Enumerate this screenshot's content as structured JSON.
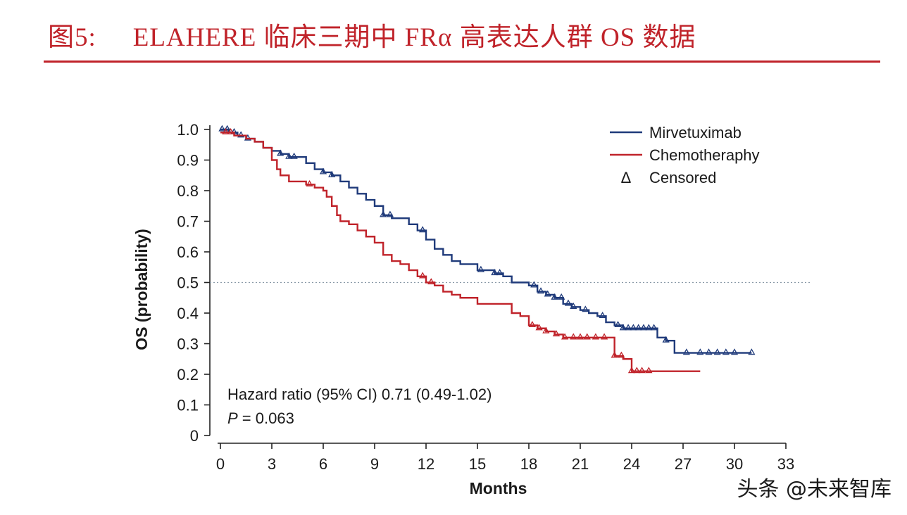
{
  "figure": {
    "label": "图5:",
    "title": "ELAHERE 临床三期中 FRα 高表达人群 OS 数据"
  },
  "watermark": "头条 @未来智库",
  "colors": {
    "title_red": "#c0232a",
    "mirv": "#1f3a7a",
    "chemo": "#c0232a"
  },
  "chart_data": {
    "type": "line",
    "title": "",
    "xlabel": "Months",
    "ylabel": "OS (probability)",
    "xlim": [
      0,
      33
    ],
    "ylim": [
      0,
      1.0
    ],
    "xticks": [
      0,
      3,
      6,
      9,
      12,
      15,
      18,
      21,
      24,
      27,
      30,
      33
    ],
    "yticks": [
      0,
      0.1,
      0.2,
      0.3,
      0.4,
      0.5,
      0.6,
      0.7,
      0.8,
      0.9,
      1.0
    ],
    "ytick_labels": [
      "0",
      "0.1",
      "0.2",
      "0.3",
      "0.4",
      "0.5",
      "0.6",
      "0.7",
      "0.8",
      "0.9",
      "1.0"
    ],
    "reference_line": {
      "y": 0.5,
      "style": "dotted"
    },
    "legend": [
      {
        "label": "Mirvetuximab",
        "kind": "line",
        "series": "mirv"
      },
      {
        "label": "Chemotheraphy",
        "kind": "line",
        "series": "chemo"
      },
      {
        "label": "Censored",
        "kind": "triangle",
        "symbol": "Δ"
      }
    ],
    "annotation": {
      "hr": "Hazard ratio (95% CI) 0.71 (0.49-1.02)",
      "p_label": "P",
      "p_value": " = 0.063"
    },
    "series": [
      {
        "id": "mirv",
        "name": "Mirvetuximab",
        "step": true,
        "x": [
          0,
          0.5,
          1.0,
          1.5,
          2.0,
          2.5,
          3.0,
          3.5,
          4.0,
          5.0,
          5.5,
          6.0,
          6.5,
          7.0,
          7.5,
          8.0,
          8.5,
          9.0,
          9.5,
          10.0,
          11.0,
          11.5,
          12.0,
          12.5,
          13.0,
          13.5,
          14.0,
          15.0,
          16.0,
          16.5,
          17.0,
          18.0,
          18.5,
          19.0,
          19.5,
          20.0,
          20.5,
          21.0,
          21.5,
          22.0,
          22.5,
          23.0,
          23.5,
          24.0,
          25.0,
          25.5,
          26.0,
          26.5,
          27.0,
          28.0,
          29.0,
          30.0,
          31.0
        ],
        "y": [
          1.0,
          0.99,
          0.98,
          0.97,
          0.96,
          0.94,
          0.93,
          0.92,
          0.91,
          0.89,
          0.87,
          0.86,
          0.85,
          0.83,
          0.81,
          0.79,
          0.77,
          0.75,
          0.72,
          0.71,
          0.69,
          0.67,
          0.64,
          0.61,
          0.59,
          0.57,
          0.56,
          0.54,
          0.53,
          0.52,
          0.5,
          0.49,
          0.47,
          0.46,
          0.45,
          0.43,
          0.42,
          0.41,
          0.4,
          0.39,
          0.37,
          0.36,
          0.35,
          0.35,
          0.35,
          0.32,
          0.31,
          0.27,
          0.27,
          0.27,
          0.27,
          0.27,
          0.27
        ],
        "censored_x": [
          0.1,
          0.4,
          0.8,
          1.2,
          1.6,
          3.5,
          4.0,
          4.3,
          6.0,
          6.5,
          9.5,
          9.9,
          11.8,
          15.2,
          16.0,
          16.3,
          18.3,
          18.7,
          19.1,
          19.5,
          19.9,
          20.3,
          20.6,
          21.3,
          22.3,
          23.2,
          23.5,
          23.8,
          24.1,
          24.4,
          24.7,
          25.0,
          25.3,
          26.0,
          27.2,
          28.0,
          28.5,
          29.0,
          29.5,
          30.0,
          31.0
        ]
      },
      {
        "id": "chemo",
        "name": "Chemotheraphy",
        "step": true,
        "x": [
          0,
          0.8,
          1.5,
          2.0,
          2.5,
          3.0,
          3.3,
          3.5,
          4.0,
          5.0,
          5.5,
          6.0,
          6.2,
          6.5,
          6.8,
          7.0,
          7.5,
          8.0,
          8.5,
          9.0,
          9.5,
          10.0,
          10.5,
          11.0,
          11.5,
          12.0,
          12.5,
          13.0,
          13.5,
          14.0,
          15.0,
          16.5,
          17.0,
          17.5,
          18.0,
          18.5,
          19.0,
          19.5,
          20.0,
          20.5,
          21.0,
          22.0,
          22.5,
          23.0,
          23.5,
          24.0,
          24.5,
          25.0,
          26.0,
          27.0,
          28.0
        ],
        "y": [
          0.99,
          0.98,
          0.97,
          0.96,
          0.94,
          0.9,
          0.87,
          0.85,
          0.83,
          0.82,
          0.81,
          0.8,
          0.78,
          0.75,
          0.72,
          0.7,
          0.69,
          0.67,
          0.65,
          0.63,
          0.59,
          0.57,
          0.56,
          0.54,
          0.52,
          0.5,
          0.49,
          0.47,
          0.46,
          0.45,
          0.43,
          0.43,
          0.4,
          0.39,
          0.36,
          0.35,
          0.34,
          0.33,
          0.32,
          0.32,
          0.32,
          0.32,
          0.32,
          0.26,
          0.25,
          0.21,
          0.21,
          0.21,
          0.21,
          0.21,
          0.21
        ],
        "censored_x": [
          0.3,
          0.6,
          5.2,
          11.8,
          12.3,
          18.2,
          18.6,
          19.0,
          19.6,
          20.1,
          20.6,
          21.0,
          21.4,
          21.9,
          22.4,
          23.0,
          23.4,
          24.0,
          24.3,
          24.6,
          25.0
        ]
      }
    ]
  }
}
